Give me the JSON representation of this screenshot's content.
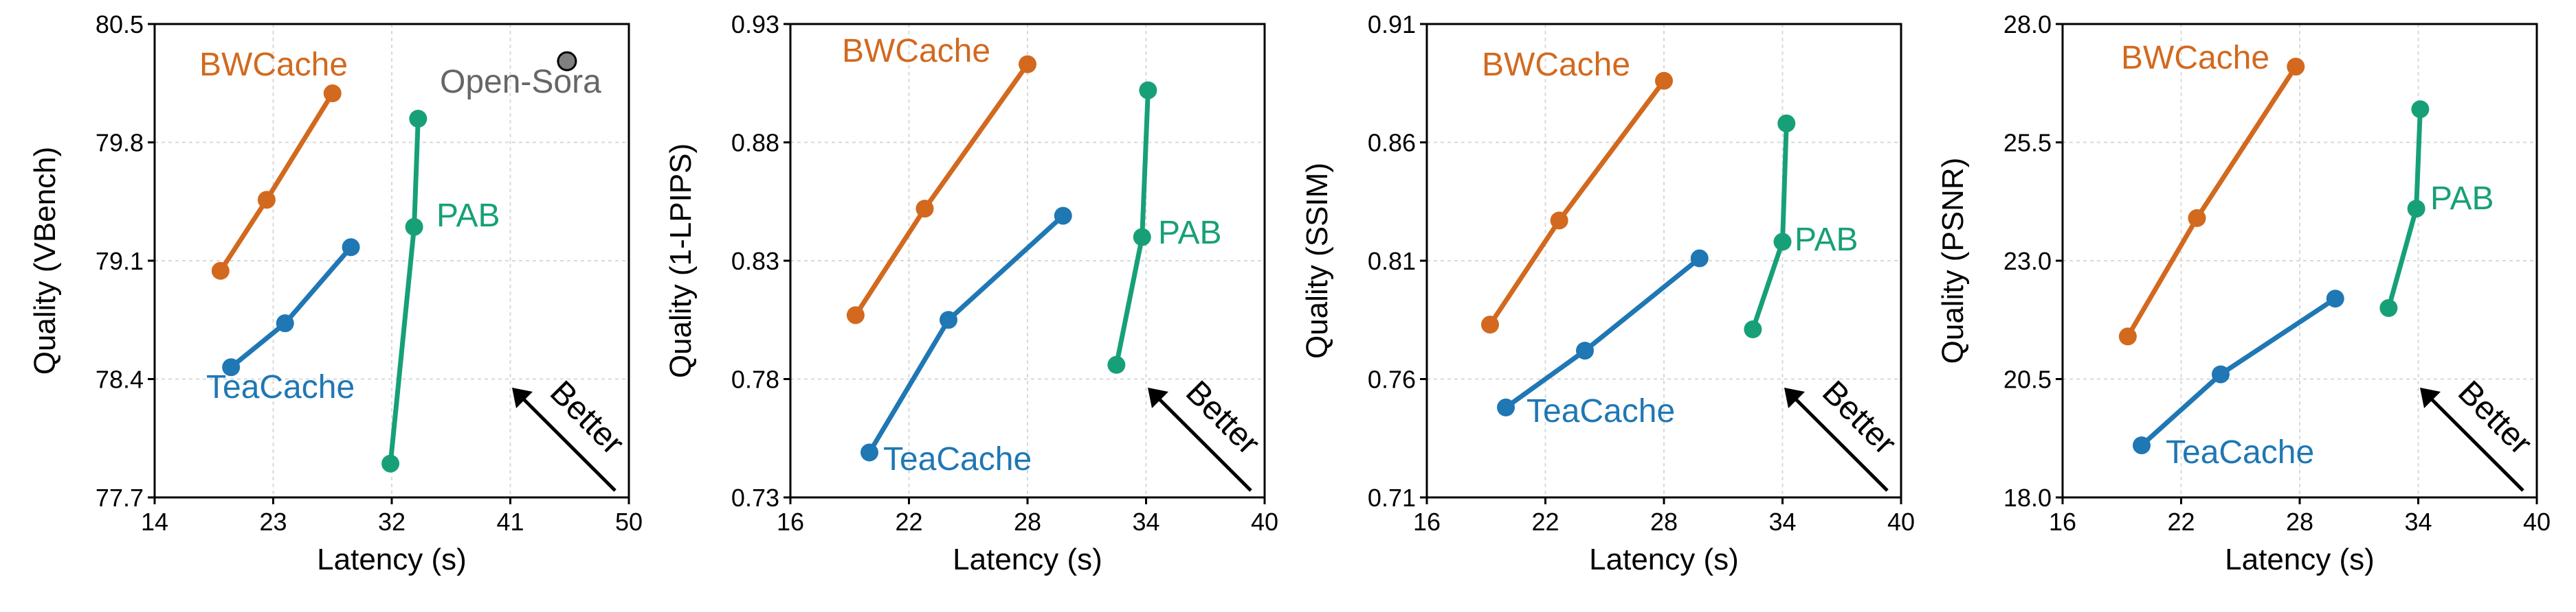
{
  "colors": {
    "BWCache": "#d2691e",
    "TeaCache": "#1f77b4",
    "PAB": "#17a077",
    "Open-Sora": "#808080"
  },
  "chart_data": [
    {
      "type": "line",
      "ylabel": "Quality (VBench)",
      "xlabel": "Latency (s)",
      "xlim": [
        14,
        50
      ],
      "ylim": [
        77.7,
        80.5
      ],
      "xticks": [
        14,
        23,
        32,
        41,
        50
      ],
      "xtick_labels": [
        "14",
        "23",
        "32",
        "41",
        "50"
      ],
      "yticks": [
        77.7,
        78.4,
        79.1,
        79.8,
        80.5
      ],
      "ytick_labels": [
        "77.7",
        "78.4",
        "79.1",
        "79.8",
        "80.5"
      ],
      "grid": true,
      "series": [
        {
          "name": "BWCache",
          "label": "BWCache",
          "x": [
            19.0,
            22.5,
            27.5
          ],
          "y": [
            79.04,
            79.46,
            80.09
          ]
        },
        {
          "name": "TeaCache",
          "label": "TeaCache",
          "x": [
            19.8,
            23.9,
            28.9
          ],
          "y": [
            78.47,
            78.73,
            79.18
          ]
        },
        {
          "name": "PAB",
          "label": "PAB",
          "x": [
            31.9,
            33.7,
            34.0
          ],
          "y": [
            77.9,
            79.3,
            79.94
          ]
        }
      ],
      "points": [
        {
          "name": "Open-Sora",
          "label": "Open-Sora",
          "x": 45.3,
          "y": 80.28
        }
      ],
      "annotation": "Better"
    },
    {
      "type": "line",
      "ylabel": "Quality (1-LPIPS)",
      "xlabel": "Latency (s)",
      "xlim": [
        16,
        40
      ],
      "ylim": [
        0.73,
        0.93
      ],
      "xticks": [
        16,
        22,
        28,
        34,
        40
      ],
      "xtick_labels": [
        "16",
        "22",
        "28",
        "34",
        "40"
      ],
      "yticks": [
        0.73,
        0.78,
        0.83,
        0.88,
        0.93
      ],
      "ytick_labels": [
        "0.73",
        "0.78",
        "0.83",
        "0.88",
        "0.93"
      ],
      "grid": true,
      "series": [
        {
          "name": "BWCache",
          "label": "BWCache",
          "x": [
            19.3,
            22.8,
            28.0
          ],
          "y": [
            0.807,
            0.852,
            0.913
          ]
        },
        {
          "name": "TeaCache",
          "label": "TeaCache",
          "x": [
            20.0,
            24.0,
            29.8
          ],
          "y": [
            0.749,
            0.805,
            0.849
          ]
        },
        {
          "name": "PAB",
          "label": "PAB",
          "x": [
            32.5,
            33.8,
            34.1
          ],
          "y": [
            0.786,
            0.84,
            0.902
          ]
        }
      ],
      "annotation": "Better"
    },
    {
      "type": "line",
      "ylabel": "Quality (SSIM)",
      "xlabel": "Latency (s)",
      "xlim": [
        16,
        40
      ],
      "ylim": [
        0.71,
        0.91
      ],
      "xticks": [
        16,
        22,
        28,
        34,
        40
      ],
      "xtick_labels": [
        "16",
        "22",
        "28",
        "34",
        "40"
      ],
      "yticks": [
        0.71,
        0.76,
        0.81,
        0.86,
        0.91
      ],
      "ytick_labels": [
        "0.71",
        "0.76",
        "0.81",
        "0.86",
        "0.91"
      ],
      "grid": true,
      "series": [
        {
          "name": "BWCache",
          "label": "BWCache",
          "x": [
            19.2,
            22.7,
            28.0
          ],
          "y": [
            0.783,
            0.827,
            0.886
          ]
        },
        {
          "name": "TeaCache",
          "label": "TeaCache",
          "x": [
            20.0,
            24.0,
            29.8
          ],
          "y": [
            0.748,
            0.772,
            0.811
          ]
        },
        {
          "name": "PAB",
          "label": "PAB",
          "x": [
            32.5,
            34.0,
            34.2
          ],
          "y": [
            0.781,
            0.818,
            0.868
          ]
        }
      ],
      "annotation": "Better"
    },
    {
      "type": "line",
      "ylabel": "Quality (PSNR)",
      "xlabel": "Latency (s)",
      "xlim": [
        16,
        40
      ],
      "ylim": [
        18.0,
        28.0
      ],
      "xticks": [
        16,
        22,
        28,
        34,
        40
      ],
      "xtick_labels": [
        "16",
        "22",
        "28",
        "34",
        "40"
      ],
      "yticks": [
        18.0,
        20.5,
        23.0,
        25.5,
        28.0
      ],
      "ytick_labels": [
        "18.0",
        "20.5",
        "23.0",
        "25.5",
        "28.0"
      ],
      "grid": true,
      "series": [
        {
          "name": "BWCache",
          "label": "BWCache",
          "x": [
            19.3,
            22.8,
            27.8
          ],
          "y": [
            21.4,
            23.9,
            27.1
          ]
        },
        {
          "name": "TeaCache",
          "label": "TeaCache",
          "x": [
            20.0,
            24.0,
            29.8
          ],
          "y": [
            19.1,
            20.6,
            22.2
          ]
        },
        {
          "name": "PAB",
          "label": "PAB",
          "x": [
            32.5,
            33.9,
            34.1
          ],
          "y": [
            22.0,
            24.1,
            26.2
          ]
        }
      ],
      "annotation": "Better"
    }
  ]
}
